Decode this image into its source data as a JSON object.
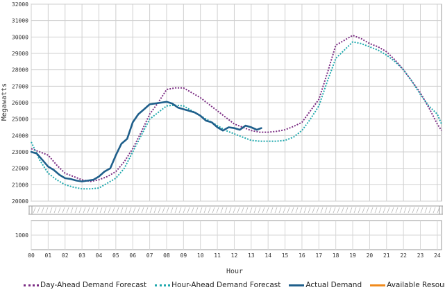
{
  "chart_data": [
    {
      "type": "line",
      "title": "",
      "xlabel": "Hour",
      "ylabel": "Megawatts",
      "ylim": [
        20000,
        32000
      ],
      "xlim": [
        0,
        24.25
      ],
      "yticks": [
        20000,
        21000,
        22000,
        23000,
        24000,
        25000,
        26000,
        27000,
        28000,
        29000,
        30000,
        31000,
        32000
      ],
      "xtick_labels": [
        "00",
        "01",
        "02",
        "03",
        "04",
        "05",
        "06",
        "07",
        "08",
        "09",
        "10",
        "11",
        "12",
        "13",
        "14",
        "15",
        "16",
        "17",
        "18",
        "19",
        "20",
        "21",
        "22",
        "23",
        "24"
      ],
      "grid": true,
      "legend_position": "bottom",
      "series": [
        {
          "name": "Day-Ahead Demand Forecast",
          "color": "#7b2c83",
          "style": "dotted",
          "x": [
            0,
            0.5,
            1,
            1.5,
            2,
            2.5,
            3,
            3.5,
            4,
            4.5,
            5,
            5.5,
            6,
            6.5,
            7,
            7.5,
            8,
            8.5,
            9,
            9.5,
            10,
            10.5,
            11,
            11.5,
            12,
            12.5,
            13,
            13.5,
            14,
            14.5,
            15,
            15.5,
            16,
            16.5,
            17,
            17.5,
            18,
            18.5,
            19,
            19.5,
            20,
            20.5,
            21,
            21.5,
            22,
            22.5,
            23,
            23.5,
            24,
            24.25
          ],
          "y": [
            23200,
            23000,
            22800,
            22200,
            21700,
            21500,
            21300,
            21200,
            21300,
            21500,
            21800,
            22400,
            23200,
            24200,
            25300,
            26000,
            26800,
            26900,
            26900,
            26600,
            26300,
            25900,
            25500,
            25100,
            24700,
            24500,
            24300,
            24200,
            24200,
            24250,
            24350,
            24550,
            24800,
            25500,
            26200,
            27800,
            29500,
            29800,
            30100,
            29900,
            29600,
            29400,
            29100,
            28600,
            28000,
            27300,
            26600,
            25700,
            24700,
            24300
          ]
        },
        {
          "name": "Hour-Ahead Demand Forecast",
          "color": "#1fa8ad",
          "style": "dotted",
          "x": [
            0,
            0.5,
            1,
            1.5,
            2,
            2.5,
            3,
            3.5,
            4,
            4.5,
            5,
            5.5,
            6,
            6.5,
            7,
            7.5,
            8,
            8.5,
            9,
            9.5,
            10,
            10.5,
            11,
            11.5,
            12,
            12.5,
            13,
            13.5,
            14,
            14.5,
            15,
            15.5,
            16,
            16.5,
            17,
            17.5,
            18,
            18.5,
            19,
            19.5,
            20,
            20.5,
            21,
            21.5,
            22,
            22.5,
            23,
            23.5,
            24,
            24.25
          ],
          "y": [
            23600,
            22500,
            21700,
            21300,
            21000,
            20850,
            20750,
            20750,
            20800,
            21100,
            21400,
            22000,
            23000,
            24000,
            25000,
            25400,
            25800,
            25850,
            25800,
            25500,
            25200,
            24900,
            24600,
            24300,
            24100,
            23900,
            23700,
            23650,
            23650,
            23650,
            23700,
            23900,
            24300,
            25000,
            25800,
            27300,
            28700,
            29200,
            29700,
            29600,
            29400,
            29200,
            28900,
            28500,
            28000,
            27300,
            26500,
            25800,
            25300,
            24700
          ]
        },
        {
          "name": "Actual Demand",
          "color": "#1f5f8b",
          "style": "solid",
          "x": [
            0,
            0.33,
            0.67,
            1,
            1.33,
            1.67,
            2,
            2.33,
            2.67,
            3,
            3.33,
            3.67,
            4,
            4.33,
            4.67,
            5,
            5.33,
            5.67,
            6,
            6.33,
            6.67,
            7,
            7.33,
            7.67,
            8,
            8.33,
            8.67,
            9,
            9.33,
            9.67,
            10,
            10.33,
            10.67,
            11,
            11.33,
            11.67,
            12,
            12.33,
            12.67,
            13,
            13.33,
            13.6
          ],
          "y": [
            23000,
            22900,
            22500,
            22100,
            21900,
            21600,
            21400,
            21350,
            21250,
            21200,
            21250,
            21300,
            21500,
            21800,
            22000,
            22800,
            23500,
            23800,
            24800,
            25300,
            25600,
            25900,
            25950,
            26000,
            26050,
            25950,
            25700,
            25600,
            25500,
            25400,
            25200,
            24900,
            24800,
            24500,
            24300,
            24500,
            24450,
            24350,
            24600,
            24500,
            24350,
            24450
          ]
        },
        {
          "name": "Available Resources",
          "color": "#f08a1c",
          "style": "solid",
          "x": [],
          "y": []
        }
      ]
    },
    {
      "type": "line",
      "title": "",
      "ylim": [
        0,
        2000
      ],
      "yticks": [
        1000
      ],
      "grid": true,
      "series": []
    }
  ]
}
